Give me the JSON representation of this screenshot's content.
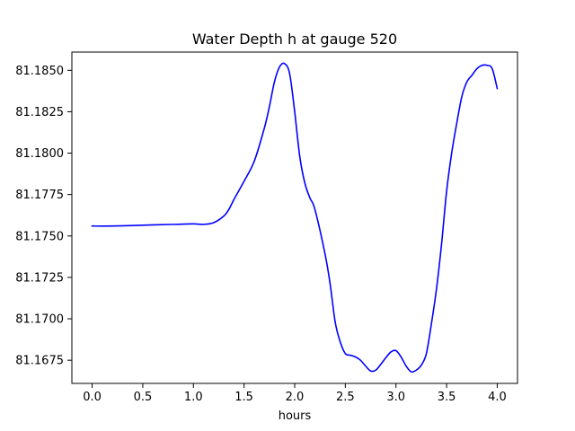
{
  "chart_data": {
    "type": "line",
    "title": "Water Depth h at gauge 520",
    "xlabel": "hours",
    "ylabel": "",
    "xlim": [
      -0.2,
      4.2
    ],
    "ylim": [
      81.1661,
      81.1861
    ],
    "xticks": [
      0.0,
      0.5,
      1.0,
      1.5,
      2.0,
      2.5,
      3.0,
      3.5,
      4.0
    ],
    "xtick_labels": [
      "0.0",
      "0.5",
      "1.0",
      "1.5",
      "2.0",
      "2.5",
      "3.0",
      "3.5",
      "4.0"
    ],
    "yticks": [
      81.1675,
      81.17,
      81.1725,
      81.175,
      81.1775,
      81.18,
      81.1825,
      81.185
    ],
    "ytick_labels": [
      "81.1675",
      "81.1700",
      "81.1725",
      "81.1750",
      "81.1775",
      "81.1800",
      "81.1825",
      "81.1850"
    ],
    "grid": false,
    "legend": "none",
    "series": [
      {
        "color": "#0000ff",
        "x": [
          0.0,
          0.2,
          0.5,
          0.8,
          1.0,
          1.1,
          1.2,
          1.3,
          1.35,
          1.4,
          1.5,
          1.6,
          1.7,
          1.75,
          1.8,
          1.85,
          1.9,
          1.95,
          2.0,
          2.05,
          2.1,
          2.15,
          2.2,
          2.3,
          2.35,
          2.4,
          2.45,
          2.5,
          2.55,
          2.6,
          2.65,
          2.7,
          2.75,
          2.8,
          2.85,
          2.9,
          2.95,
          3.0,
          3.05,
          3.1,
          3.15,
          3.2,
          3.25,
          3.3,
          3.35,
          3.4,
          3.45,
          3.5,
          3.55,
          3.6,
          3.65,
          3.7,
          3.75,
          3.8,
          3.85,
          3.9,
          3.95,
          4.0
        ],
        "y": [
          81.1756,
          81.1756,
          81.17565,
          81.1757,
          81.17573,
          81.1757,
          81.1758,
          81.1762,
          81.1766,
          81.1772,
          81.1783,
          81.1795,
          81.1815,
          81.1828,
          81.1843,
          81.1852,
          81.1854,
          81.1848,
          81.1825,
          81.1798,
          81.1782,
          81.1773,
          81.1766,
          81.1739,
          81.1721,
          81.1698,
          81.1686,
          81.1679,
          81.1678,
          81.1677,
          81.1675,
          81.16715,
          81.16685,
          81.1669,
          81.16725,
          81.16765,
          81.168,
          81.16808,
          81.1677,
          81.16715,
          81.1668,
          81.1669,
          81.1672,
          81.1679,
          81.1697,
          81.1718,
          81.1745,
          81.1777,
          81.18,
          81.1818,
          81.1834,
          81.1843,
          81.1847,
          81.1851,
          81.1853,
          81.1853,
          81.1851,
          81.1839
        ]
      }
    ]
  }
}
